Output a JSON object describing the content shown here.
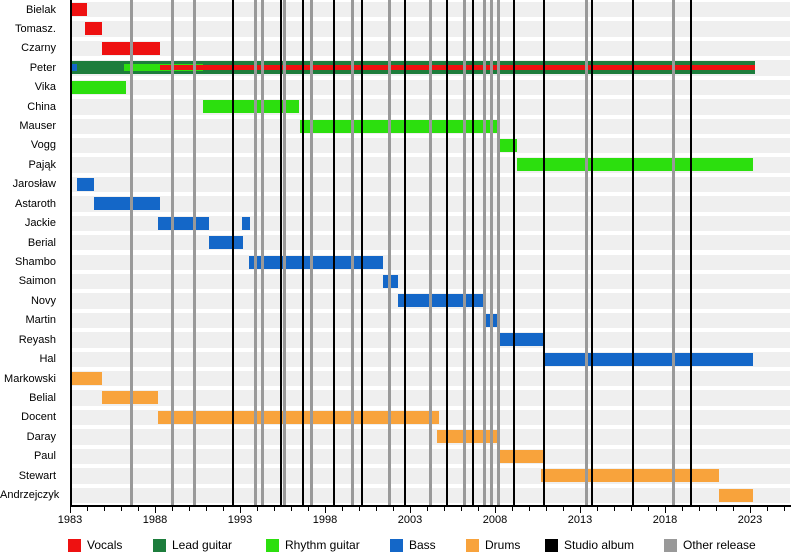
{
  "chart_data": {
    "type": "bar",
    "subtype": "band-member-gantt-timeline",
    "title": "",
    "x_axis": {
      "min": 1983,
      "max": 2025.3,
      "major_tick_years": [
        1983,
        1988,
        1993,
        1998,
        2003,
        2008,
        2013,
        2018,
        2023
      ],
      "minor_tick_interval": 1,
      "grid": false
    },
    "colors": {
      "vocals": "#ee1111",
      "lead_guitar": "#1d7d3c",
      "rhythm_guitar": "#2cdf0e",
      "bass": "#1467c8",
      "drums": "#f8a33c",
      "studio_album": "#000000",
      "other_release": "#999999",
      "row_stripe": "#efefef"
    },
    "legend": [
      {
        "label": "Vocals",
        "role": "vocals"
      },
      {
        "label": "Lead guitar",
        "role": "lead_guitar"
      },
      {
        "label": "Rhythm guitar",
        "role": "rhythm_guitar"
      },
      {
        "label": "Bass",
        "role": "bass"
      },
      {
        "label": "Drums",
        "role": "drums"
      },
      {
        "label": "Studio album",
        "role": "studio_album"
      },
      {
        "label": "Other release",
        "role": "other_release"
      }
    ],
    "members": [
      {
        "name": "Bielak",
        "segments": [
          {
            "role": "vocals",
            "start": 1983.0,
            "end": 1984.0,
            "size": "full"
          }
        ]
      },
      {
        "name": "Tomasz.",
        "segments": [
          {
            "role": "vocals",
            "start": 1983.9,
            "end": 1984.9,
            "size": "full"
          }
        ]
      },
      {
        "name": "Czarny",
        "segments": [
          {
            "role": "vocals",
            "start": 1984.9,
            "end": 1988.3,
            "size": "full"
          }
        ]
      },
      {
        "name": "Peter",
        "segments": [
          {
            "role": "lead_guitar",
            "start": 1983.0,
            "end": 2023.3,
            "size": "full"
          },
          {
            "role": "rhythm_guitar",
            "start": 1986.2,
            "end": 1990.8,
            "size": "mid"
          },
          {
            "role": "vocals",
            "start": 1988.3,
            "end": 2023.3,
            "size": "small"
          },
          {
            "role": "bass",
            "start": 1983.0,
            "end": 1983.4,
            "size": "mid"
          }
        ]
      },
      {
        "name": "Vika",
        "segments": [
          {
            "role": "rhythm_guitar",
            "start": 1983.0,
            "end": 1986.3,
            "size": "full"
          }
        ]
      },
      {
        "name": "China",
        "segments": [
          {
            "role": "rhythm_guitar",
            "start": 1990.8,
            "end": 1996.5,
            "size": "full"
          }
        ]
      },
      {
        "name": "Mauser",
        "segments": [
          {
            "role": "rhythm_guitar",
            "start": 1996.5,
            "end": 2008.1,
            "size": "full"
          }
        ]
      },
      {
        "name": "Vogg",
        "segments": [
          {
            "role": "rhythm_guitar",
            "start": 2008.1,
            "end": 2009.3,
            "size": "full"
          }
        ]
      },
      {
        "name": "Pająk",
        "segments": [
          {
            "role": "rhythm_guitar",
            "start": 2009.3,
            "end": 2023.2,
            "size": "full"
          }
        ]
      },
      {
        "name": "Jarosław",
        "segments": [
          {
            "role": "bass",
            "start": 1983.4,
            "end": 1984.4,
            "size": "full"
          }
        ]
      },
      {
        "name": "Astaroth",
        "segments": [
          {
            "role": "bass",
            "start": 1984.4,
            "end": 1988.3,
            "size": "full"
          }
        ]
      },
      {
        "name": "Jackie",
        "segments": [
          {
            "role": "bass",
            "start": 1988.2,
            "end": 1991.2,
            "size": "full"
          },
          {
            "role": "bass",
            "start": 1993.1,
            "end": 1993.6,
            "size": "full"
          }
        ]
      },
      {
        "name": "Berial",
        "segments": [
          {
            "role": "bass",
            "start": 1991.2,
            "end": 1993.2,
            "size": "full"
          }
        ]
      },
      {
        "name": "Shambo",
        "segments": [
          {
            "role": "bass",
            "start": 1993.5,
            "end": 2001.4,
            "size": "full"
          }
        ]
      },
      {
        "name": "Saimon",
        "segments": [
          {
            "role": "bass",
            "start": 2001.4,
            "end": 2002.3,
            "size": "full"
          }
        ]
      },
      {
        "name": "Novy",
        "segments": [
          {
            "role": "bass",
            "start": 2002.3,
            "end": 2007.4,
            "size": "full"
          }
        ]
      },
      {
        "name": "Martin",
        "segments": [
          {
            "role": "bass",
            "start": 2007.4,
            "end": 2008.2,
            "size": "full"
          }
        ]
      },
      {
        "name": "Reyash",
        "segments": [
          {
            "role": "bass",
            "start": 2008.2,
            "end": 2010.8,
            "size": "full"
          }
        ]
      },
      {
        "name": "Hal",
        "segments": [
          {
            "role": "bass",
            "start": 2010.8,
            "end": 2023.2,
            "size": "full"
          }
        ]
      },
      {
        "name": "Markowski",
        "segments": [
          {
            "role": "drums",
            "start": 1983.1,
            "end": 1984.9,
            "size": "full"
          }
        ]
      },
      {
        "name": "Belial",
        "segments": [
          {
            "role": "drums",
            "start": 1984.9,
            "end": 1988.2,
            "size": "full"
          }
        ]
      },
      {
        "name": "Docent",
        "segments": [
          {
            "role": "drums",
            "start": 1988.2,
            "end": 2004.7,
            "size": "full"
          }
        ]
      },
      {
        "name": "Daray",
        "segments": [
          {
            "role": "drums",
            "start": 2004.6,
            "end": 2008.1,
            "size": "full"
          }
        ]
      },
      {
        "name": "Paul",
        "segments": [
          {
            "role": "drums",
            "start": 2008.1,
            "end": 2010.8,
            "size": "full"
          }
        ]
      },
      {
        "name": "Stewart",
        "segments": [
          {
            "role": "drums",
            "start": 2010.7,
            "end": 2021.2,
            "size": "full"
          }
        ]
      },
      {
        "name": "Andrzejczyk",
        "segments": [
          {
            "role": "drums",
            "start": 2021.2,
            "end": 2023.2,
            "size": "full"
          }
        ]
      }
    ],
    "releases": {
      "studio_album": [
        1992.6,
        1995.4,
        1996.7,
        1998.5,
        2000.2,
        2002.7,
        2005.2,
        2006.7,
        2009.1,
        2010.9,
        2013.7,
        2016.1,
        2019.5
      ],
      "other_release": [
        1986.6,
        1989.0,
        1990.3,
        1993.9,
        1994.3,
        1995.6,
        1997.2,
        1999.6,
        2001.8,
        2004.2,
        2006.2,
        2007.4,
        2007.8,
        2008.2,
        2013.4,
        2018.5
      ]
    }
  }
}
